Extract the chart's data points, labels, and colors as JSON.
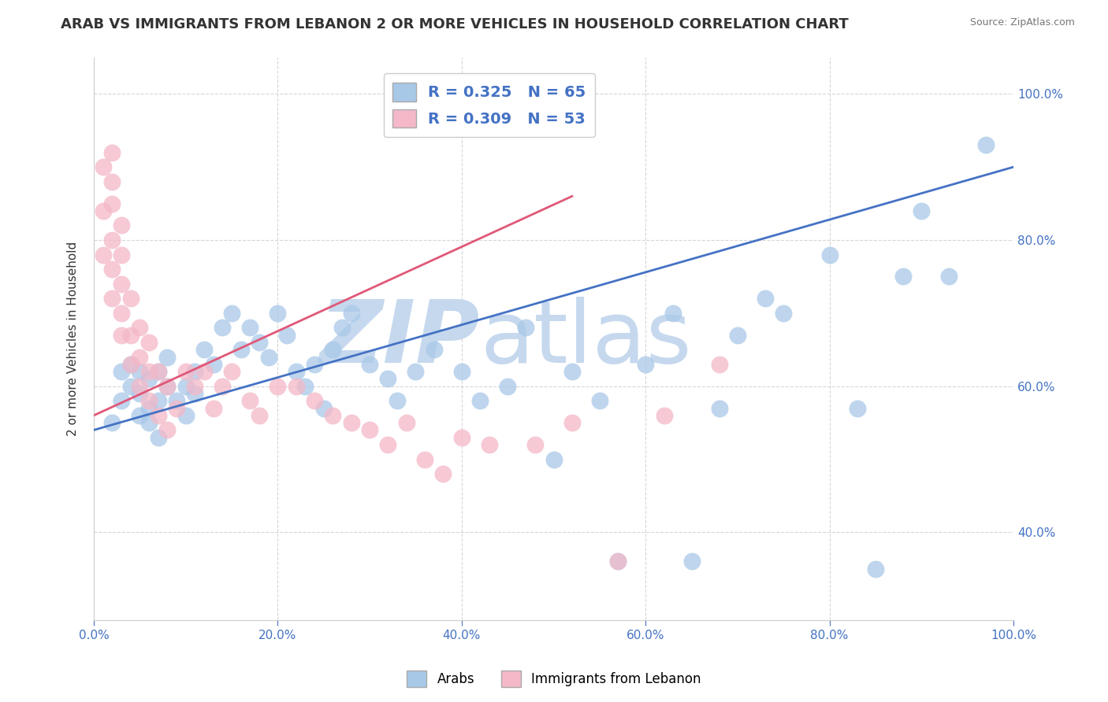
{
  "title": "ARAB VS IMMIGRANTS FROM LEBANON 2 OR MORE VEHICLES IN HOUSEHOLD CORRELATION CHART",
  "source_text": "Source: ZipAtlas.com",
  "xlabel": "",
  "ylabel": "2 or more Vehicles in Household",
  "xlim": [
    0.0,
    1.0
  ],
  "ylim": [
    0.28,
    1.05
  ],
  "xticks": [
    0.0,
    0.2,
    0.4,
    0.6,
    0.8,
    1.0
  ],
  "yticks": [
    0.4,
    0.6,
    0.8,
    1.0
  ],
  "xtick_labels": [
    "0.0%",
    "20.0%",
    "40.0%",
    "60.0%",
    "80.0%",
    "100.0%"
  ],
  "ytick_labels": [
    "40.0%",
    "60.0%",
    "80.0%",
    "100.0%"
  ],
  "legend_labels": [
    "Arabs",
    "Immigrants from Lebanon"
  ],
  "R_blue": 0.325,
  "N_blue": 65,
  "R_pink": 0.309,
  "N_pink": 53,
  "blue_color": "#a8c8e8",
  "pink_color": "#f4b8c8",
  "blue_line_color": "#4472c4",
  "pink_line_color": "#e05878",
  "watermark_zip": "ZIP",
  "watermark_atlas": "atlas",
  "watermark_color_zip": "#c5d8ee",
  "watermark_color_atlas": "#c5d8ee",
  "grid_color": "#cccccc",
  "title_fontsize": 13,
  "axis_fontsize": 11,
  "tick_fontsize": 11,
  "blue_x": [
    0.02,
    0.03,
    0.03,
    0.04,
    0.04,
    0.05,
    0.05,
    0.05,
    0.06,
    0.06,
    0.06,
    0.07,
    0.07,
    0.07,
    0.08,
    0.08,
    0.09,
    0.1,
    0.1,
    0.11,
    0.11,
    0.12,
    0.13,
    0.14,
    0.15,
    0.16,
    0.17,
    0.18,
    0.19,
    0.2,
    0.21,
    0.22,
    0.23,
    0.24,
    0.25,
    0.26,
    0.27,
    0.28,
    0.3,
    0.32,
    0.33,
    0.35,
    0.37,
    0.4,
    0.42,
    0.45,
    0.47,
    0.5,
    0.52,
    0.55,
    0.57,
    0.6,
    0.63,
    0.65,
    0.68,
    0.7,
    0.73,
    0.75,
    0.8,
    0.83,
    0.85,
    0.88,
    0.9,
    0.93,
    0.97
  ],
  "blue_y": [
    0.55,
    0.58,
    0.62,
    0.6,
    0.63,
    0.56,
    0.59,
    0.62,
    0.55,
    0.57,
    0.61,
    0.53,
    0.58,
    0.62,
    0.6,
    0.64,
    0.58,
    0.56,
    0.6,
    0.59,
    0.62,
    0.65,
    0.63,
    0.68,
    0.7,
    0.65,
    0.68,
    0.66,
    0.64,
    0.7,
    0.67,
    0.62,
    0.6,
    0.63,
    0.57,
    0.65,
    0.68,
    0.7,
    0.63,
    0.61,
    0.58,
    0.62,
    0.65,
    0.62,
    0.58,
    0.6,
    0.68,
    0.5,
    0.62,
    0.58,
    0.36,
    0.63,
    0.7,
    0.36,
    0.57,
    0.67,
    0.72,
    0.7,
    0.78,
    0.57,
    0.35,
    0.75,
    0.84,
    0.75,
    0.93
  ],
  "pink_x": [
    0.01,
    0.01,
    0.01,
    0.02,
    0.02,
    0.02,
    0.02,
    0.02,
    0.02,
    0.03,
    0.03,
    0.03,
    0.03,
    0.03,
    0.04,
    0.04,
    0.04,
    0.05,
    0.05,
    0.05,
    0.06,
    0.06,
    0.06,
    0.07,
    0.07,
    0.08,
    0.08,
    0.09,
    0.1,
    0.11,
    0.12,
    0.13,
    0.14,
    0.15,
    0.17,
    0.18,
    0.2,
    0.22,
    0.24,
    0.26,
    0.28,
    0.3,
    0.32,
    0.34,
    0.36,
    0.38,
    0.4,
    0.43,
    0.48,
    0.52,
    0.57,
    0.62,
    0.68
  ],
  "pink_y": [
    0.78,
    0.84,
    0.9,
    0.72,
    0.76,
    0.8,
    0.85,
    0.88,
    0.92,
    0.67,
    0.7,
    0.74,
    0.78,
    0.82,
    0.63,
    0.67,
    0.72,
    0.6,
    0.64,
    0.68,
    0.58,
    0.62,
    0.66,
    0.56,
    0.62,
    0.54,
    0.6,
    0.57,
    0.62,
    0.6,
    0.62,
    0.57,
    0.6,
    0.62,
    0.58,
    0.56,
    0.6,
    0.6,
    0.58,
    0.56,
    0.55,
    0.54,
    0.52,
    0.55,
    0.5,
    0.48,
    0.53,
    0.52,
    0.52,
    0.55,
    0.36,
    0.56,
    0.63
  ],
  "blue_trend_x": [
    0.0,
    1.0
  ],
  "blue_trend_y": [
    0.54,
    0.9
  ],
  "pink_trend_x": [
    0.0,
    0.52
  ],
  "pink_trend_y": [
    0.56,
    0.86
  ]
}
